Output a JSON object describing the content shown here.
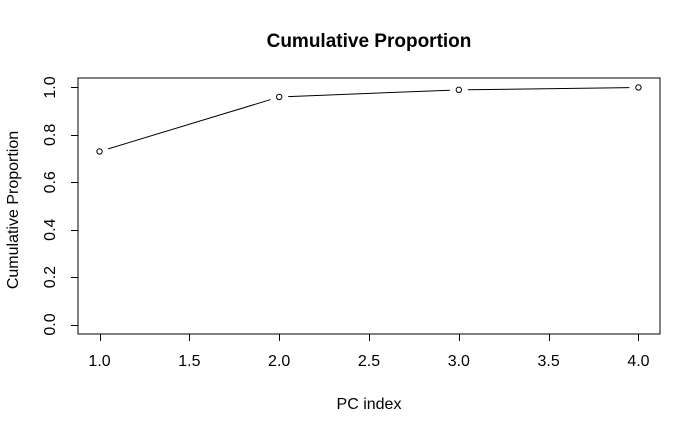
{
  "chart_data": {
    "type": "line",
    "title": "Cumulative Proportion",
    "xlabel": "PC index",
    "ylabel": "Cumulative Proportion",
    "x": [
      1,
      2,
      3,
      4
    ],
    "y": [
      0.73,
      0.96,
      0.99,
      1.0
    ],
    "series": [
      {
        "name": "cumulative-proportion",
        "x": [
          1,
          2,
          3,
          4
        ],
        "values": [
          0.73,
          0.96,
          0.99,
          1.0
        ]
      }
    ],
    "xticks": [
      1.0,
      1.5,
      2.0,
      2.5,
      3.0,
      3.5,
      4.0
    ],
    "xtick_labels": [
      "1.0",
      "1.5",
      "2.0",
      "2.5",
      "3.0",
      "3.5",
      "4.0"
    ],
    "yticks": [
      0.0,
      0.2,
      0.4,
      0.6,
      0.8,
      1.0
    ],
    "ytick_labels": [
      "0.0",
      "0.2",
      "0.4",
      "0.6",
      "0.8",
      "1.0"
    ],
    "xlim": [
      0.88,
      4.12
    ],
    "ylim": [
      -0.04,
      1.04
    ],
    "grid": false,
    "legend": "none",
    "marker": "open-circle",
    "plot_style": "points-and-lines-with-gaps",
    "line_color": "#000000",
    "axis_color": "#000000",
    "text_color": "#000000",
    "background_color": "#ffffff"
  }
}
